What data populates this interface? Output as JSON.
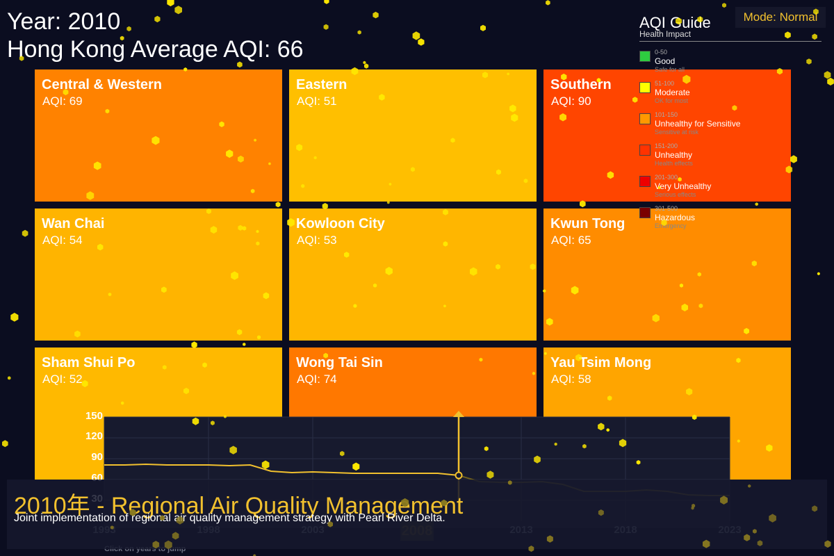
{
  "header": {
    "year_text": "Year: 2010",
    "average_text": "Hong Kong Average AQI: 66"
  },
  "districts": [
    {
      "name": "Central & Western",
      "aqi_text": "AQI: 69",
      "color": "#ff8200"
    },
    {
      "name": "Eastern",
      "aqi_text": "AQI: 51",
      "color": "#ffbf00"
    },
    {
      "name": "Southern",
      "aqi_text": "AQI: 90",
      "color": "#ff4500"
    },
    {
      "name": "Wan Chai",
      "aqi_text": "AQI: 54",
      "color": "#ffb400"
    },
    {
      "name": "Kowloon City",
      "aqi_text": "AQI: 53",
      "color": "#ffb600"
    },
    {
      "name": "Kwun Tong",
      "aqi_text": "AQI: 65",
      "color": "#ff8c00"
    },
    {
      "name": "Sham Shui Po",
      "aqi_text": "AQI: 52",
      "color": "#ffb900"
    },
    {
      "name": "Wong Tai Sin",
      "aqi_text": "AQI: 74",
      "color": "#ff7800"
    },
    {
      "name": "Yau Tsim Mong",
      "aqi_text": "AQI: 58",
      "color": "#ffa500"
    }
  ],
  "guide": {
    "title": "AQI Guide",
    "subtitle": "Health Impact",
    "items": [
      {
        "range": "0-50",
        "label": "Good",
        "note": "Safe for all",
        "color": "#2ecc40"
      },
      {
        "range": "51-100",
        "label": "Moderate",
        "note": "OK for most",
        "color": "#ffff00"
      },
      {
        "range": "101-150",
        "label": "Unhealthy for Sensitive",
        "note": "Sensitive at risk",
        "color": "#ff9900"
      },
      {
        "range": "151-200",
        "label": "Unhealthy",
        "note": "Health effects",
        "color": "#ff3300"
      },
      {
        "range": "201-300",
        "label": "Very Unhealthy",
        "note": "Serious effects",
        "color": "#ee0000"
      },
      {
        "range": "301-500",
        "label": "Hazardous",
        "note": "Emergency",
        "color": "#7a0000"
      }
    ]
  },
  "mode": {
    "label": "Mode: Normal"
  },
  "timeline": {
    "y_ticks": [
      "150",
      "120",
      "90",
      "60",
      "30"
    ],
    "x_ticks": [
      {
        "label": "1993",
        "year": 1993
      },
      {
        "label": "1998",
        "year": 1998
      },
      {
        "label": "2003",
        "year": 2003
      },
      {
        "label": "2013",
        "year": 2013
      },
      {
        "label": "2018",
        "year": 2018
      },
      {
        "label": "2023",
        "year": 2023
      }
    ],
    "active_year_label": "2008",
    "hint": "Click on years to jump",
    "accent": "#f2c12e"
  },
  "chart_data": {
    "type": "line",
    "title": "",
    "xlabel": "",
    "ylabel": "",
    "xlim": [
      1993,
      2023
    ],
    "ylim": [
      0,
      150
    ],
    "selected_x": 2010,
    "series": [
      {
        "x": [
          1993,
          1994,
          1995,
          1996,
          1997,
          1998,
          1999,
          2000,
          2001,
          2002,
          2003,
          2004,
          2005,
          2006,
          2007,
          2008,
          2009,
          2010,
          2011,
          2012,
          2013,
          2014,
          2015,
          2016,
          2017,
          2018,
          2019,
          2020,
          2021,
          2022,
          2023
        ],
        "values": [
          81,
          81,
          82,
          81,
          81,
          81,
          80,
          81,
          72,
          70,
          71,
          70,
          69,
          69,
          69,
          69,
          69,
          66,
          57,
          56,
          56,
          57,
          53,
          43,
          43,
          43,
          45,
          43,
          38,
          37,
          37
        ]
      }
    ]
  },
  "event": {
    "title": "2010年 - Regional Air Quality Management",
    "description": "Joint implementation of regional air quality management strategy with Pearl River Delta."
  }
}
